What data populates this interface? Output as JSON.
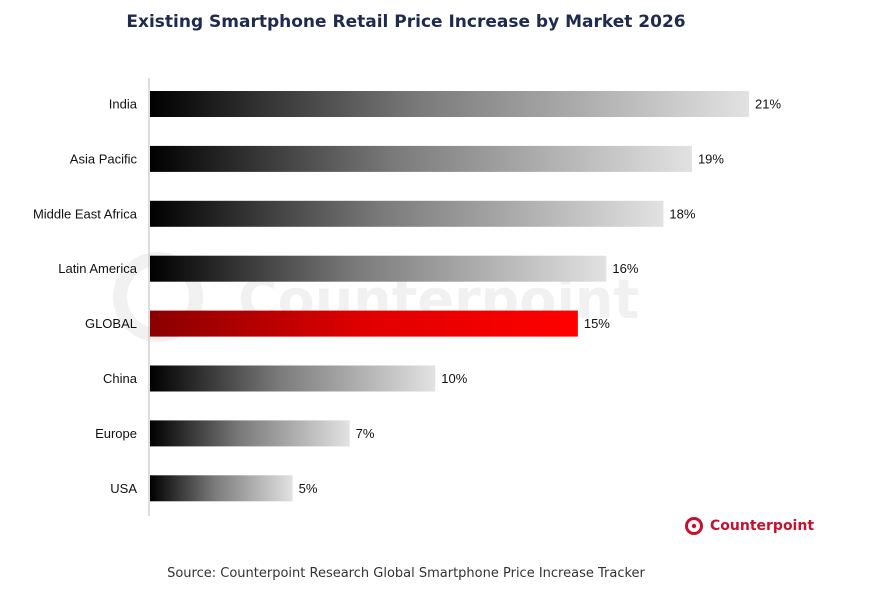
{
  "chart_data": {
    "type": "bar",
    "orientation": "horizontal",
    "title": "Existing Smartphone Retail Price Increase by Market 2026",
    "categories": [
      "India",
      "Asia Pacific",
      "Middle East Africa",
      "Latin America",
      "GLOBAL",
      "China",
      "Europe",
      "USA"
    ],
    "values": [
      21,
      19,
      18,
      16,
      15,
      10,
      7,
      5
    ],
    "value_labels": [
      "21%",
      "19%",
      "18%",
      "16%",
      "15%",
      "10%",
      "7%",
      "5%"
    ],
    "unit": "%",
    "xlim": [
      0,
      21
    ],
    "grid": false,
    "legend": "none",
    "highlight_category": "GLOBAL",
    "colors": {
      "bar_gradient_start": "#000000",
      "bar_gradient_end": "#e2e2e2",
      "highlight_start": "#8a0000",
      "highlight_end": "#ff0000",
      "axis": "#bbbbbb"
    }
  },
  "watermark": "Counterpoint",
  "logo": {
    "icon": "counterpoint-logo-icon",
    "text": "Counterpoint",
    "color": "#c8102e"
  },
  "source_note": "Source: Counterpoint Research Global Smartphone Price Increase Tracker"
}
